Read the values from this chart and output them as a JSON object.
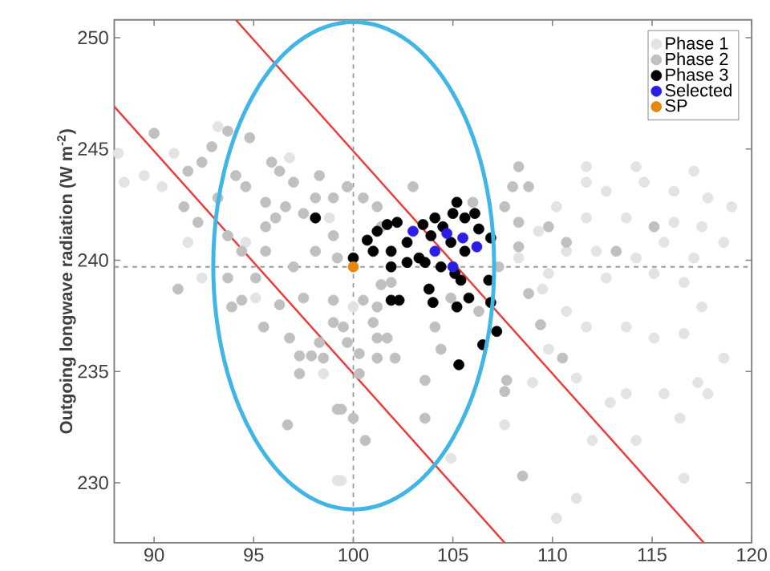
{
  "chart_data": {
    "type": "scatter",
    "ylabel": "Outgoing longwave radiation (W m$^{-2}$)",
    "xlim": [
      88,
      120
    ],
    "xticks": [
      90,
      95,
      100,
      105,
      110,
      115,
      120
    ],
    "ylim": [
      227.3,
      250.8
    ],
    "yticks": [
      230,
      235,
      240,
      245,
      250
    ],
    "legend": "top right",
    "marker": "circle",
    "ref_lines": [
      {
        "axis": "x",
        "value": 100,
        "color": "#999999",
        "line_style": "dashed"
      },
      {
        "axis": "y",
        "value": 239.7,
        "color": "#999999",
        "line_style": "dashed"
      }
    ],
    "series": [
      {
        "name": "Phase 1",
        "color": "#e3e3e3",
        "x": [
          114.2,
          117.1,
          111.7,
          112.7,
          114.6,
          116.1,
          117.8,
          119,
          110.2,
          111.7,
          113.7,
          116.1,
          117.5,
          109.3,
          110.7,
          112.2,
          114.2,
          115.6,
          117.1,
          118.6,
          115.1,
          116.6,
          112.7,
          109.8,
          108.3,
          111.7,
          109.5,
          110.7,
          111.7,
          113.7,
          115.1,
          116.6,
          117.5,
          118.6,
          117.3,
          117.8,
          115.6,
          113.7,
          112.9,
          111.2,
          109,
          107.6,
          112,
          114.2,
          116.4,
          116.6,
          111.2,
          110.2,
          109.8,
          99.4,
          104.9,
          88.2,
          88.5,
          89.5,
          91,
          90.4,
          93.2,
          96.8,
          91.7,
          92.4,
          98.8,
          94.6,
          99.2,
          95.1,
          100,
          98.5
        ],
        "values": [
          244.2,
          244,
          243.5,
          243.1,
          243.5,
          243.1,
          242.8,
          242.4,
          242.4,
          241.9,
          241.9,
          241.7,
          241.5,
          241.3,
          240.4,
          240.4,
          240.1,
          240.8,
          240.1,
          240.8,
          239.4,
          239,
          239.2,
          239.4,
          240.1,
          244.2,
          238.7,
          237.7,
          237,
          237,
          236.5,
          236.7,
          237.9,
          235.6,
          234.5,
          234,
          234,
          234,
          233.6,
          234.7,
          234.5,
          232.6,
          231.9,
          231.9,
          232.9,
          230.2,
          229.3,
          228.4,
          236,
          230.1,
          231.1,
          244.8,
          243.5,
          243.8,
          244.8,
          243.3,
          246,
          244.6,
          240.8,
          239.2,
          241.9,
          240.8,
          230.1,
          238.3,
          237.9,
          234.9
        ]
      },
      {
        "name": "Phase 2",
        "color": "#c0c0c0",
        "x": [
          90,
          92.9,
          93.7,
          94.8,
          92.4,
          91.7,
          91.5,
          92.2,
          93.2,
          94.1,
          94.6,
          95.6,
          96.3,
          95.9,
          97,
          97.5,
          96.1,
          96.6,
          98.1,
          99,
          99.7,
          98.3,
          95.6,
          93.7,
          94.4,
          95.6,
          97,
          98.1,
          99,
          99.2,
          93.7,
          95.1,
          101.4,
          101.2,
          100.5,
          91.2,
          94.4,
          93.9,
          95.5,
          96.3,
          97.5,
          96.8,
          97.3,
          97.3,
          97.9,
          98.5,
          98.3,
          99,
          99,
          99.7,
          100.3,
          100.3,
          99.2,
          96.7,
          100,
          100.6,
          101.2,
          101,
          101.2,
          101.4,
          100.5,
          99.5,
          101.7,
          101.2,
          102.1,
          104.1,
          104.4,
          103.6,
          103.6,
          104.9,
          106.3,
          107.7,
          107.6,
          108.5,
          108.8,
          109.4,
          110.5,
          99.4,
          108.3,
          108,
          108.8,
          103,
          106,
          107.6,
          108.3,
          110.7,
          109.8,
          101.9,
          108.3,
          107.3,
          113.2,
          115.1,
          99.7
        ],
        "values": [
          245.7,
          245.1,
          245.8,
          245.5,
          244.4,
          244,
          242.4,
          241.7,
          242.8,
          243.8,
          243.3,
          242.6,
          244,
          244.4,
          243.5,
          242.1,
          241.9,
          242.4,
          242.8,
          242.8,
          243.3,
          243.8,
          241.5,
          241.1,
          240.4,
          240.4,
          239.7,
          240.4,
          241.1,
          240.1,
          239.2,
          239.2,
          241.5,
          242.4,
          242.8,
          238.7,
          238.2,
          237.9,
          237,
          238,
          238.3,
          236.5,
          235.7,
          234.9,
          235.7,
          235.6,
          236.3,
          238.2,
          237.2,
          236.3,
          235.8,
          234.9,
          233.3,
          232.6,
          232.9,
          231.9,
          236.5,
          237.2,
          237.9,
          238.9,
          238.2,
          237,
          236.5,
          235.6,
          235.6,
          237,
          236,
          234.6,
          232.9,
          238.3,
          237.7,
          234.6,
          234.1,
          230.3,
          238.5,
          237.1,
          235.6,
          233.3,
          244.2,
          243.3,
          243.3,
          243.3,
          242.6,
          242.4,
          241.7,
          240.8,
          241.5,
          239,
          240.6,
          239.7,
          240.4,
          241.5,
          243.3
        ]
      },
      {
        "color": "#ee3b3b",
        "type": "line",
        "marker": "none",
        "x": [
          88,
          107.6
        ],
        "values": [
          246.9,
          227.3
        ]
      },
      {
        "color": "#ee3b3b",
        "type": "line",
        "marker": "none",
        "x": [
          94.1,
          117.6
        ],
        "values": [
          250.8,
          227.3
        ]
      },
      {
        "name": "Phase 3",
        "color": "#000000",
        "x": [
          100.7,
          102.2,
          101,
          101.9,
          102.7,
          103.5,
          103.9,
          103.3,
          102.7,
          104.1,
          105,
          105.6,
          106.3,
          106.9,
          104.9,
          105.6,
          103.6,
          104.4,
          105.1,
          105.4,
          106.8,
          101.9,
          105.2,
          106.1,
          104.5,
          98.1,
          100,
          101.2,
          101.7,
          101.9,
          102.3,
          103.8,
          104,
          105.2,
          105.8,
          107.2,
          106.5,
          105.3,
          106.9
        ],
        "values": [
          240.9,
          241.7,
          240.4,
          240.4,
          240.8,
          241.6,
          241.1,
          240.1,
          239.9,
          241.9,
          242.1,
          241.9,
          241.4,
          241,
          240.8,
          240.4,
          239.9,
          239.7,
          239.4,
          239.1,
          239.1,
          239.7,
          242.6,
          242.1,
          241.5,
          241.9,
          240.1,
          241.3,
          241.6,
          238.2,
          238.2,
          238.7,
          238.1,
          237.9,
          238.3,
          236.8,
          236.2,
          235.3,
          238.1
        ]
      },
      {
        "name": "Selected",
        "color": "#2b1ee6",
        "x": [
          103,
          104.7,
          104.1,
          105.5,
          106.2,
          105
        ],
        "values": [
          241.3,
          241.2,
          240.4,
          241,
          240.6,
          239.7
        ]
      },
      {
        "name": "SP",
        "color": "#e6870f",
        "x": [
          100
        ],
        "values": [
          239.7
        ]
      }
    ]
  }
}
